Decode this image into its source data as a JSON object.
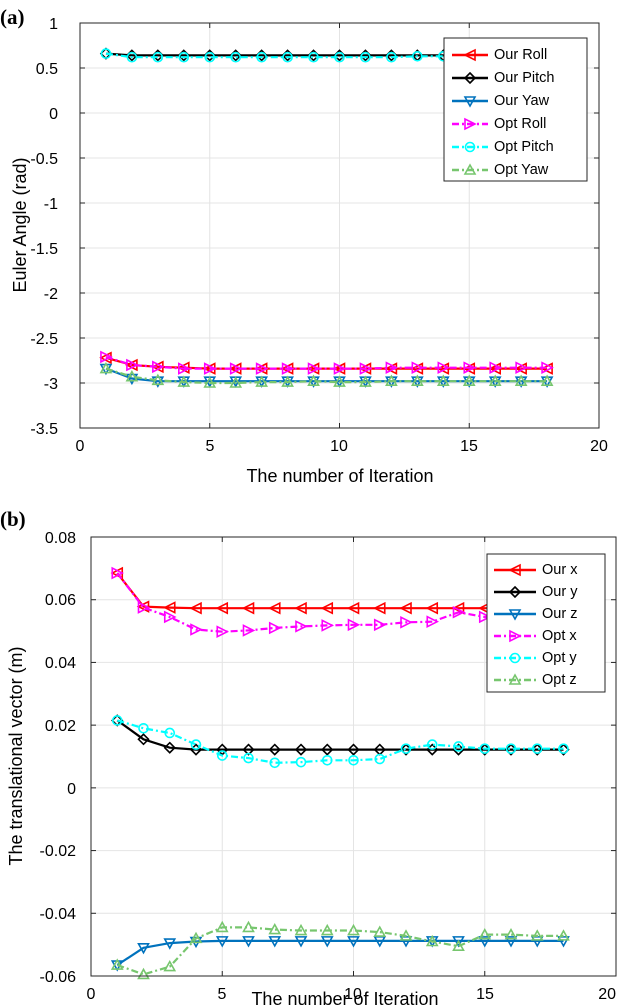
{
  "chart_data": [
    {
      "panel_label": "(a)",
      "type": "line",
      "xlabel": "The number of Iteration",
      "ylabel": "Euler Angle (rad)",
      "xlim": [
        0,
        20
      ],
      "ylim": [
        -3.5,
        1
      ],
      "xticks": [
        0,
        5,
        10,
        15,
        20
      ],
      "xtick_labels": [
        "0",
        "5",
        "10",
        "15",
        "20"
      ],
      "yticks": [
        1,
        0.5,
        0,
        -0.5,
        -1,
        -1.5,
        -2,
        -2.5,
        -3,
        -3.5
      ],
      "ytick_labels": [
        "1",
        "0.5",
        "0",
        "-0.5",
        "-1",
        "-1.5",
        "-2",
        "-2.5",
        "-3",
        "-3.5"
      ],
      "grid": true,
      "legend_position": "top-right",
      "x": [
        1,
        2,
        3,
        4,
        5,
        6,
        7,
        8,
        9,
        10,
        11,
        12,
        13,
        14,
        15,
        16,
        17,
        18
      ],
      "series": [
        {
          "name": "Our Roll",
          "color": "#ff0000",
          "dash": "solid",
          "marker": "triangle-left",
          "values": [
            -2.72,
            -2.8,
            -2.82,
            -2.83,
            -2.84,
            -2.84,
            -2.84,
            -2.84,
            -2.84,
            -2.84,
            -2.84,
            -2.84,
            -2.84,
            -2.84,
            -2.84,
            -2.84,
            -2.84,
            -2.84
          ]
        },
        {
          "name": "Our Pitch",
          "color": "#000000",
          "dash": "solid",
          "marker": "diamond",
          "values": [
            0.66,
            0.64,
            0.64,
            0.64,
            0.64,
            0.64,
            0.64,
            0.64,
            0.64,
            0.64,
            0.64,
            0.64,
            0.64,
            0.64,
            0.64,
            0.64,
            0.64,
            0.64
          ]
        },
        {
          "name": "Our Yaw",
          "color": "#0072bd",
          "dash": "solid",
          "marker": "triangle-down",
          "values": [
            -2.84,
            -2.95,
            -2.98,
            -2.98,
            -2.98,
            -2.98,
            -2.98,
            -2.98,
            -2.98,
            -2.98,
            -2.98,
            -2.98,
            -2.98,
            -2.98,
            -2.98,
            -2.98,
            -2.98,
            -2.98
          ]
        },
        {
          "name": "Opt Roll",
          "color": "#ff00ff",
          "dash": "dashdot",
          "marker": "triangle-right",
          "values": [
            -2.71,
            -2.8,
            -2.82,
            -2.84,
            -2.84,
            -2.84,
            -2.84,
            -2.84,
            -2.84,
            -2.84,
            -2.84,
            -2.83,
            -2.83,
            -2.83,
            -2.83,
            -2.83,
            -2.83,
            -2.83
          ]
        },
        {
          "name": "Opt Pitch",
          "color": "#00ffff",
          "dash": "dashdot",
          "marker": "circle",
          "values": [
            0.66,
            0.62,
            0.62,
            0.62,
            0.62,
            0.62,
            0.62,
            0.62,
            0.62,
            0.62,
            0.62,
            0.62,
            0.63,
            0.63,
            0.63,
            0.63,
            0.63,
            0.63
          ]
        },
        {
          "name": "Opt Yaw",
          "color": "#77c66e",
          "dash": "dashdot",
          "marker": "triangle-up",
          "values": [
            -2.84,
            -2.93,
            -2.97,
            -2.99,
            -3.0,
            -3.0,
            -2.99,
            -2.99,
            -2.98,
            -2.99,
            -2.99,
            -2.98,
            -2.98,
            -2.98,
            -2.98,
            -2.98,
            -2.98,
            -2.98
          ]
        }
      ]
    },
    {
      "panel_label": "(b)",
      "type": "line",
      "xlabel": "The number of Iteration",
      "ylabel": "The translational vector (m)",
      "xlim": [
        0,
        20
      ],
      "ylim": [
        -0.06,
        0.08
      ],
      "xticks": [
        0,
        5,
        10,
        15,
        20
      ],
      "xtick_labels": [
        "0",
        "5",
        "10",
        "15",
        "20"
      ],
      "yticks": [
        0.08,
        0.06,
        0.04,
        0.02,
        0,
        -0.02,
        -0.04,
        -0.06
      ],
      "ytick_labels": [
        "0.08",
        "0.06",
        "0.04",
        "0.02",
        "0",
        "-0.02",
        "-0.04",
        "-0.06"
      ],
      "grid": true,
      "legend_position": "top-right",
      "x": [
        1,
        2,
        3,
        4,
        5,
        6,
        7,
        8,
        9,
        10,
        11,
        12,
        13,
        14,
        15,
        16,
        17,
        18
      ],
      "series": [
        {
          "name": "Our x",
          "color": "#ff0000",
          "dash": "solid",
          "marker": "triangle-left",
          "values": [
            0.0685,
            0.0578,
            0.0575,
            0.0573,
            0.0573,
            0.0573,
            0.0573,
            0.0573,
            0.0573,
            0.0573,
            0.0573,
            0.0573,
            0.0573,
            0.0573,
            0.0573,
            0.0573,
            0.0573,
            0.0573
          ]
        },
        {
          "name": "Our y",
          "color": "#000000",
          "dash": "solid",
          "marker": "diamond",
          "values": [
            0.0215,
            0.0155,
            0.0128,
            0.0122,
            0.0122,
            0.0122,
            0.0122,
            0.0122,
            0.0122,
            0.0122,
            0.0122,
            0.0122,
            0.0122,
            0.0122,
            0.0122,
            0.0122,
            0.0122,
            0.0122
          ]
        },
        {
          "name": "Our z",
          "color": "#0072bd",
          "dash": "solid",
          "marker": "triangle-down",
          "values": [
            -0.0565,
            -0.051,
            -0.0495,
            -0.049,
            -0.0488,
            -0.0488,
            -0.0488,
            -0.0488,
            -0.0488,
            -0.0488,
            -0.0488,
            -0.0488,
            -0.0488,
            -0.0488,
            -0.0488,
            -0.0488,
            -0.0488,
            -0.0488
          ]
        },
        {
          "name": "Opt x",
          "color": "#ff00ff",
          "dash": "dashdot",
          "marker": "triangle-right",
          "values": [
            0.0685,
            0.0575,
            0.0545,
            0.0505,
            0.0498,
            0.0502,
            0.051,
            0.0515,
            0.0518,
            0.052,
            0.052,
            0.0528,
            0.053,
            0.056,
            0.0545,
            0.056,
            0.0565,
            0.057
          ]
        },
        {
          "name": "Opt y",
          "color": "#00ffff",
          "dash": "dashdot",
          "marker": "circle",
          "values": [
            0.0215,
            0.019,
            0.0175,
            0.0138,
            0.0103,
            0.0095,
            0.008,
            0.0082,
            0.0088,
            0.0088,
            0.0092,
            0.0125,
            0.0138,
            0.0132,
            0.0125,
            0.0125,
            0.0125,
            0.0125
          ]
        },
        {
          "name": "Opt z",
          "color": "#77c66e",
          "dash": "dashdot",
          "marker": "triangle-up",
          "values": [
            -0.0565,
            -0.0595,
            -0.057,
            -0.048,
            -0.0445,
            -0.0445,
            -0.0452,
            -0.0455,
            -0.0455,
            -0.0455,
            -0.046,
            -0.0472,
            -0.049,
            -0.0505,
            -0.0468,
            -0.0468,
            -0.0472,
            -0.0472
          ]
        }
      ]
    }
  ]
}
